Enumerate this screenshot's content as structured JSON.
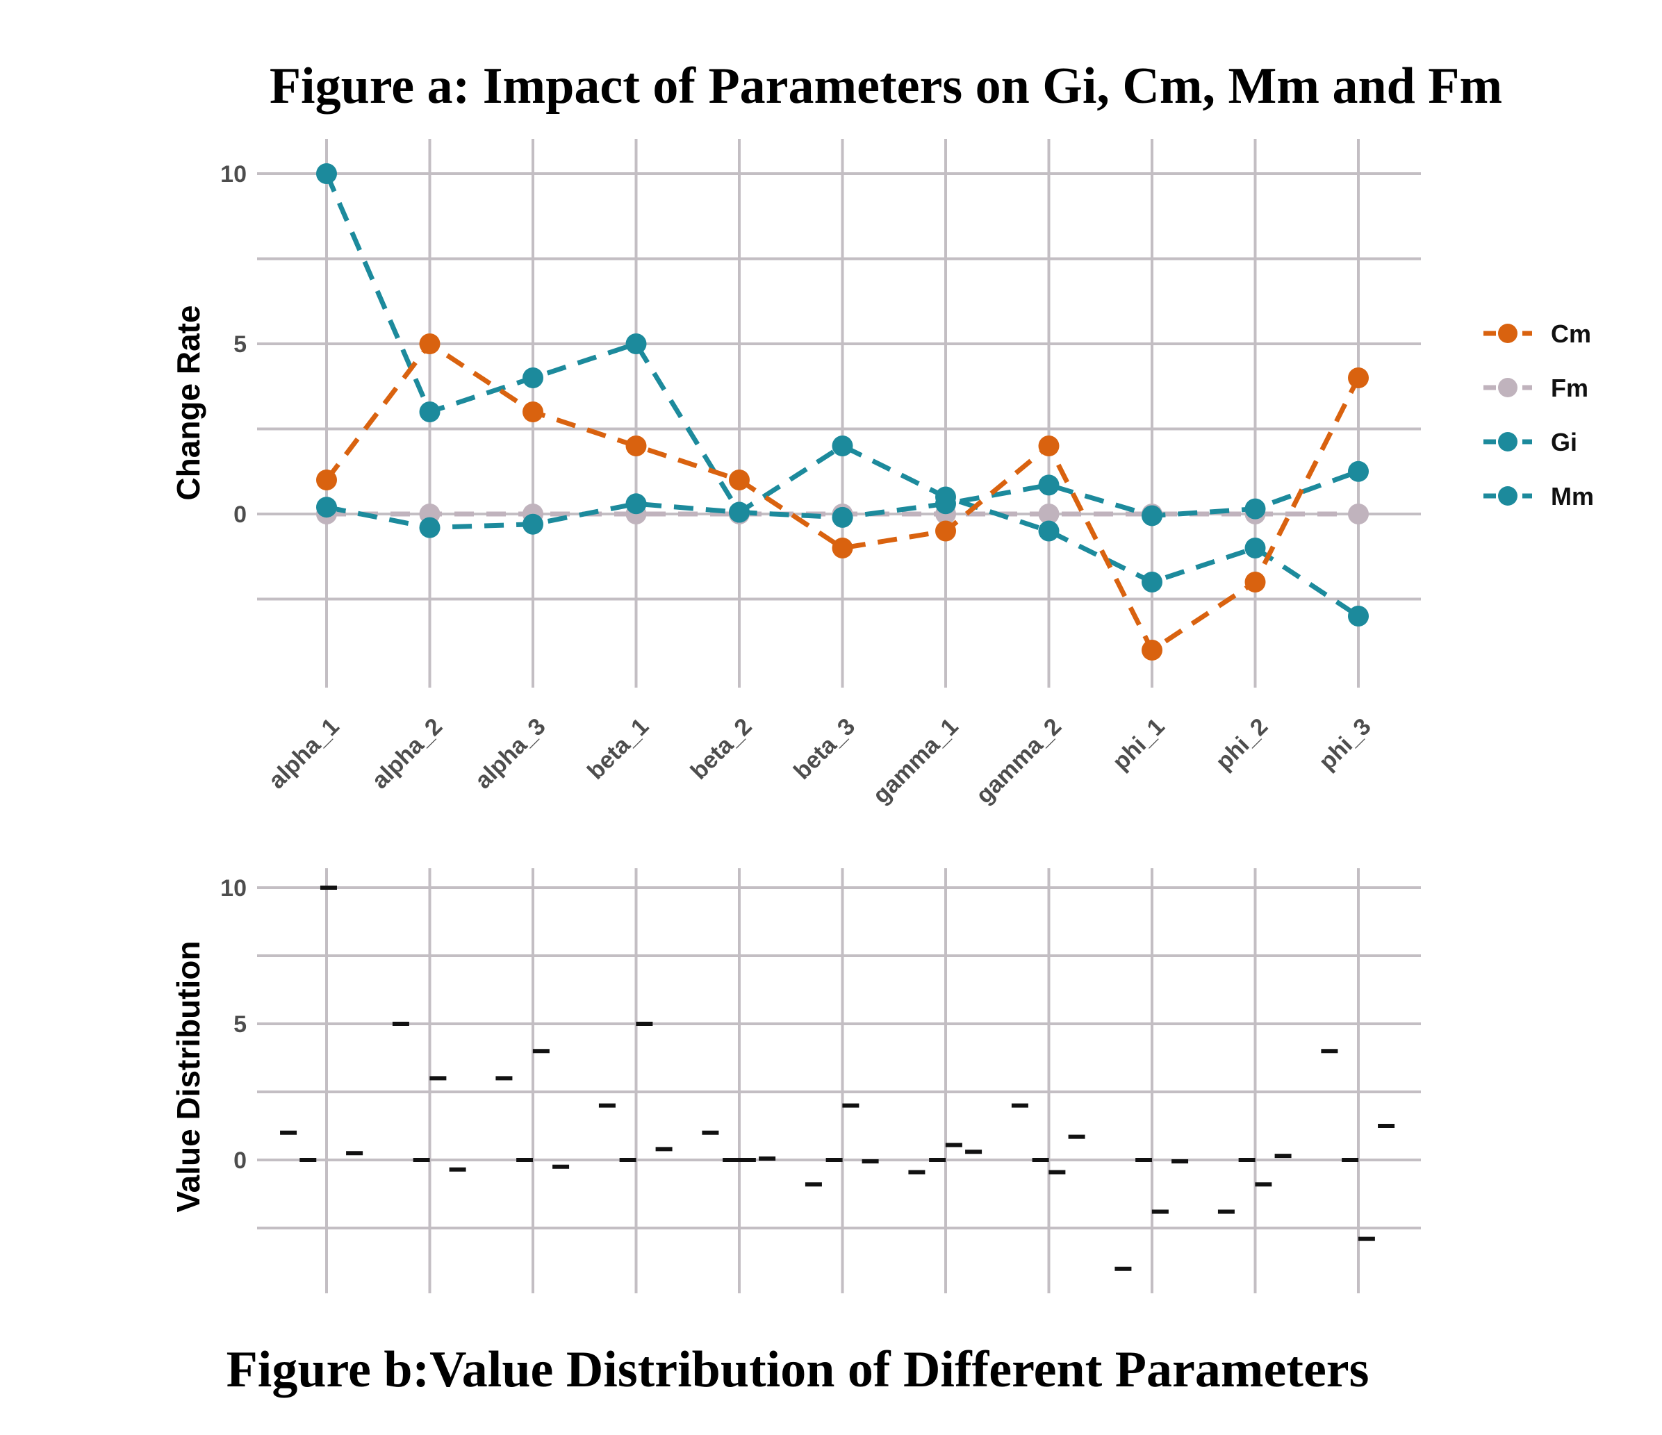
{
  "figure_a_title": "Figure a: Impact of Parameters on Gi, Cm, Mm and Fm",
  "figure_b_title": "Figure b:Value Distribution of Different Parameters",
  "chart_data": [
    {
      "type": "line",
      "title": "Figure a: Impact of Parameters on Gi, Cm, Mm and Fm",
      "xlabel": "",
      "ylabel": "Change Rate",
      "ylim": [
        -4.8,
        10.8
      ],
      "yticks": [
        0,
        5,
        10
      ],
      "grid": true,
      "legend_position": "right",
      "categories": [
        "alpha_1",
        "alpha_2",
        "alpha_3",
        "beta_1",
        "beta_2",
        "beta_3",
        "gamma_1",
        "gamma_2",
        "phi_1",
        "phi_2",
        "phi_3"
      ],
      "series": [
        {
          "name": "Cm",
          "color": "#d9620f",
          "values": [
            1,
            5,
            3,
            2,
            1,
            -1,
            -0.5,
            2,
            -4,
            -2,
            4
          ]
        },
        {
          "name": "Fm",
          "color": "#c0b3bd",
          "values": [
            0,
            0,
            0,
            0,
            0,
            0,
            0,
            0,
            0,
            0,
            0
          ]
        },
        {
          "name": "Gi",
          "color": "#1c8a9c",
          "values": [
            10,
            3,
            4,
            5,
            0.05,
            2,
            0.5,
            -0.5,
            -2,
            -1,
            -3
          ]
        },
        {
          "name": "Mm",
          "color": "#1c8a9c",
          "values": [
            0.2,
            -0.4,
            -0.3,
            0.3,
            0.05,
            -0.1,
            0.3,
            0.85,
            -0.05,
            0.15,
            1.25
          ]
        }
      ]
    },
    {
      "type": "scatter",
      "title": "Figure b:Value Distribution of Different Parameters",
      "xlabel": "",
      "ylabel": "Value Distribution",
      "ylim": [
        -4.5,
        10.5
      ],
      "yticks": [
        0,
        5,
        10
      ],
      "grid": true,
      "categories": [
        "alpha_1",
        "alpha_2",
        "alpha_3",
        "beta_1",
        "beta_2",
        "beta_3",
        "gamma_1",
        "gamma_2",
        "phi_1",
        "phi_2",
        "phi_3"
      ],
      "points": [
        {
          "x": 0.63,
          "y": 1
        },
        {
          "x": 0.82,
          "y": 0
        },
        {
          "x": 1.02,
          "y": 10
        },
        {
          "x": 1.27,
          "y": 0.25
        },
        {
          "x": 1.72,
          "y": 5
        },
        {
          "x": 1.92,
          "y": 0
        },
        {
          "x": 2.08,
          "y": 3
        },
        {
          "x": 2.27,
          "y": -0.35
        },
        {
          "x": 2.72,
          "y": 3
        },
        {
          "x": 2.92,
          "y": 0
        },
        {
          "x": 3.08,
          "y": 4
        },
        {
          "x": 3.27,
          "y": -0.25
        },
        {
          "x": 3.72,
          "y": 2
        },
        {
          "x": 3.92,
          "y": 0
        },
        {
          "x": 4.08,
          "y": 5
        },
        {
          "x": 4.27,
          "y": 0.4
        },
        {
          "x": 4.72,
          "y": 1
        },
        {
          "x": 4.92,
          "y": 0
        },
        {
          "x": 5.08,
          "y": 0
        },
        {
          "x": 5.27,
          "y": 0.05
        },
        {
          "x": 5.72,
          "y": -0.9
        },
        {
          "x": 5.92,
          "y": 0
        },
        {
          "x": 6.08,
          "y": 2
        },
        {
          "x": 6.27,
          "y": -0.05
        },
        {
          "x": 6.72,
          "y": -0.45
        },
        {
          "x": 6.92,
          "y": 0
        },
        {
          "x": 7.08,
          "y": 0.55
        },
        {
          "x": 7.27,
          "y": 0.3
        },
        {
          "x": 7.72,
          "y": 2
        },
        {
          "x": 7.92,
          "y": 0
        },
        {
          "x": 8.08,
          "y": -0.45
        },
        {
          "x": 8.27,
          "y": 0.85
        },
        {
          "x": 8.72,
          "y": -4
        },
        {
          "x": 8.92,
          "y": 0
        },
        {
          "x": 9.08,
          "y": -1.9
        },
        {
          "x": 9.27,
          "y": -0.05
        },
        {
          "x": 9.72,
          "y": -1.9
        },
        {
          "x": 9.92,
          "y": 0
        },
        {
          "x": 10.08,
          "y": -0.9
        },
        {
          "x": 10.27,
          "y": 0.15
        },
        {
          "x": 10.72,
          "y": 4
        },
        {
          "x": 10.92,
          "y": 0
        },
        {
          "x": 11.08,
          "y": -2.9
        },
        {
          "x": 11.27,
          "y": 1.25
        }
      ]
    }
  ]
}
